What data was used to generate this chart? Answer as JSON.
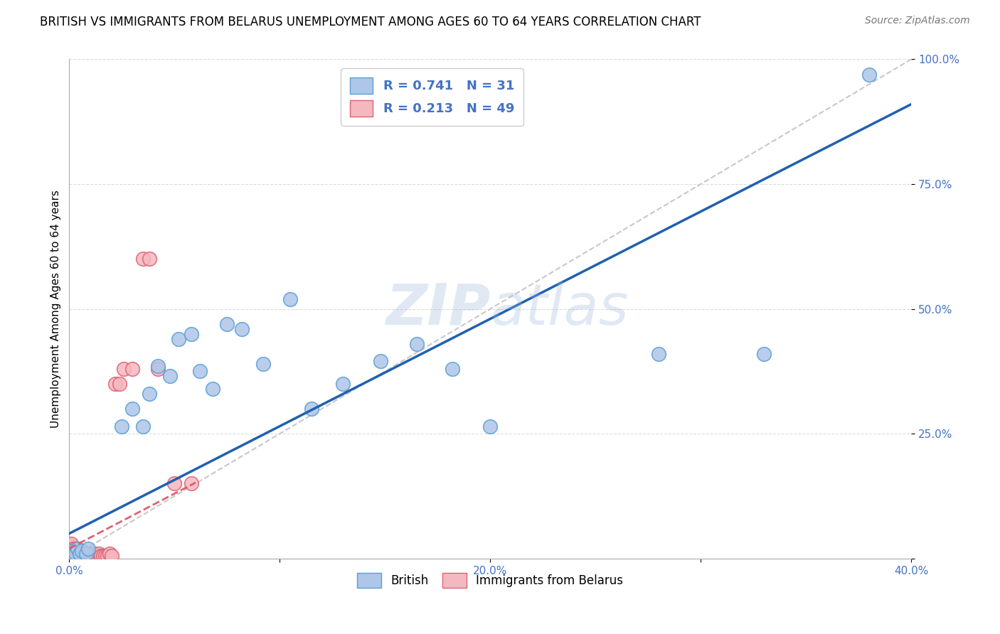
{
  "title": "BRITISH VS IMMIGRANTS FROM BELARUS UNEMPLOYMENT AMONG AGES 60 TO 64 YEARS CORRELATION CHART",
  "source": "Source: ZipAtlas.com",
  "ylabel": "Unemployment Among Ages 60 to 64 years",
  "xlim": [
    0.0,
    0.4
  ],
  "ylim": [
    0.0,
    1.0
  ],
  "xticks": [
    0.0,
    0.1,
    0.2,
    0.3,
    0.4
  ],
  "yticks": [
    0.0,
    0.25,
    0.5,
    0.75,
    1.0
  ],
  "xticklabels": [
    "0.0%",
    "",
    "20.0%",
    "",
    "40.0%"
  ],
  "yticklabels": [
    "",
    "25.0%",
    "50.0%",
    "75.0%",
    "100.0%"
  ],
  "british_color": "#aec6e8",
  "belarus_color": "#f4b8c0",
  "british_edge": "#5a9fd4",
  "belarus_edge": "#e06070",
  "regression_british_color": "#2060b0",
  "regression_belarus_color": "#e05060",
  "watermark_color": "#9ab8d8",
  "legend_line1": "R = 0.741   N = 31",
  "legend_line2": "R = 0.213   N = 49",
  "background_color": "#ffffff",
  "grid_color": "#cccccc",
  "title_fontsize": 12,
  "axis_fontsize": 11,
  "tick_fontsize": 11,
  "tick_color": "#4472c4",
  "source_fontsize": 10,
  "british_x": [
    0.001,
    0.002,
    0.003,
    0.004,
    0.005,
    0.006,
    0.008,
    0.009,
    0.025,
    0.03,
    0.035,
    0.038,
    0.042,
    0.048,
    0.052,
    0.058,
    0.062,
    0.068,
    0.075,
    0.082,
    0.092,
    0.105,
    0.115,
    0.13,
    0.148,
    0.165,
    0.182,
    0.2,
    0.28,
    0.33,
    0.38
  ],
  "british_y": [
    0.01,
    0.015,
    0.01,
    0.02,
    0.01,
    0.015,
    0.01,
    0.02,
    0.265,
    0.3,
    0.265,
    0.33,
    0.385,
    0.365,
    0.44,
    0.45,
    0.375,
    0.34,
    0.47,
    0.46,
    0.39,
    0.52,
    0.3,
    0.35,
    0.395,
    0.43,
    0.38,
    0.265,
    0.41,
    0.41,
    0.97
  ],
  "belarus_x": [
    0.001,
    0.001,
    0.001,
    0.001,
    0.001,
    0.001,
    0.002,
    0.002,
    0.002,
    0.002,
    0.003,
    0.003,
    0.003,
    0.003,
    0.004,
    0.004,
    0.005,
    0.005,
    0.005,
    0.006,
    0.006,
    0.006,
    0.007,
    0.007,
    0.008,
    0.008,
    0.009,
    0.009,
    0.01,
    0.01,
    0.011,
    0.012,
    0.013,
    0.014,
    0.015,
    0.016,
    0.017,
    0.018,
    0.019,
    0.02,
    0.022,
    0.024,
    0.026,
    0.03,
    0.035,
    0.038,
    0.042,
    0.05,
    0.058
  ],
  "belarus_y": [
    0.005,
    0.01,
    0.015,
    0.02,
    0.025,
    0.03,
    0.005,
    0.01,
    0.015,
    0.02,
    0.005,
    0.01,
    0.015,
    0.02,
    0.005,
    0.01,
    0.005,
    0.01,
    0.015,
    0.005,
    0.01,
    0.015,
    0.005,
    0.01,
    0.005,
    0.01,
    0.005,
    0.01,
    0.005,
    0.01,
    0.005,
    0.01,
    0.005,
    0.01,
    0.005,
    0.005,
    0.005,
    0.005,
    0.01,
    0.005,
    0.35,
    0.35,
    0.38,
    0.38,
    0.6,
    0.6,
    0.38,
    0.15,
    0.15
  ],
  "british_reg_slope": 2.15,
  "british_reg_intercept": 0.05,
  "belarus_reg_slope": 2.2,
  "belarus_reg_intercept": 0.02
}
